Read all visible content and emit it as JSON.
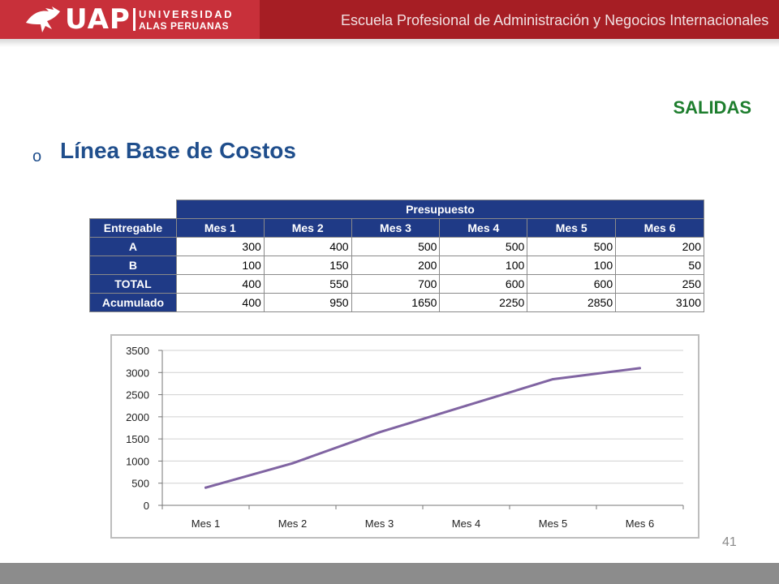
{
  "header": {
    "logo_text": "UAP",
    "logo_line1": "UNIVERSIDAD",
    "logo_line2": "ALAS PERUANAS",
    "school_title": "Escuela Profesional de Administración y Negocios Internacionales"
  },
  "section_label": "SALIDAS",
  "bullet": "o",
  "slide_title": "Línea Base de Costos",
  "table": {
    "group_header": "Presupuesto",
    "corner_header": "Entregable",
    "columns": [
      "Mes 1",
      "Mes 2",
      "Mes 3",
      "Mes 4",
      "Mes 5",
      "Mes 6"
    ],
    "rows": [
      {
        "label": "A",
        "values": [
          "300",
          "400",
          "500",
          "500",
          "500",
          "200"
        ]
      },
      {
        "label": "B",
        "values": [
          "100",
          "150",
          "200",
          "100",
          "100",
          "50"
        ]
      },
      {
        "label": "TOTAL",
        "values": [
          "400",
          "550",
          "700",
          "600",
          "600",
          "250"
        ]
      },
      {
        "label": "Acumulado",
        "values": [
          "400",
          "950",
          "1650",
          "2250",
          "2850",
          "3100"
        ]
      }
    ]
  },
  "chart_data": {
    "type": "line",
    "categories": [
      "Mes 1",
      "Mes 2",
      "Mes 3",
      "Mes 4",
      "Mes 5",
      "Mes 6"
    ],
    "values": [
      400,
      950,
      1650,
      2250,
      2850,
      3100
    ],
    "ylim": [
      0,
      3500
    ],
    "yticks": [
      0,
      500,
      1000,
      1500,
      2000,
      2500,
      3000,
      3500
    ],
    "grid": "horizontal",
    "legend": "none",
    "line_color": "#8064a2"
  },
  "page_number": "41",
  "colors": {
    "header": "#a61e24",
    "accent_green": "#1e7e2e",
    "title_blue": "#1f4e8c",
    "table_header": "#1f3a86"
  }
}
